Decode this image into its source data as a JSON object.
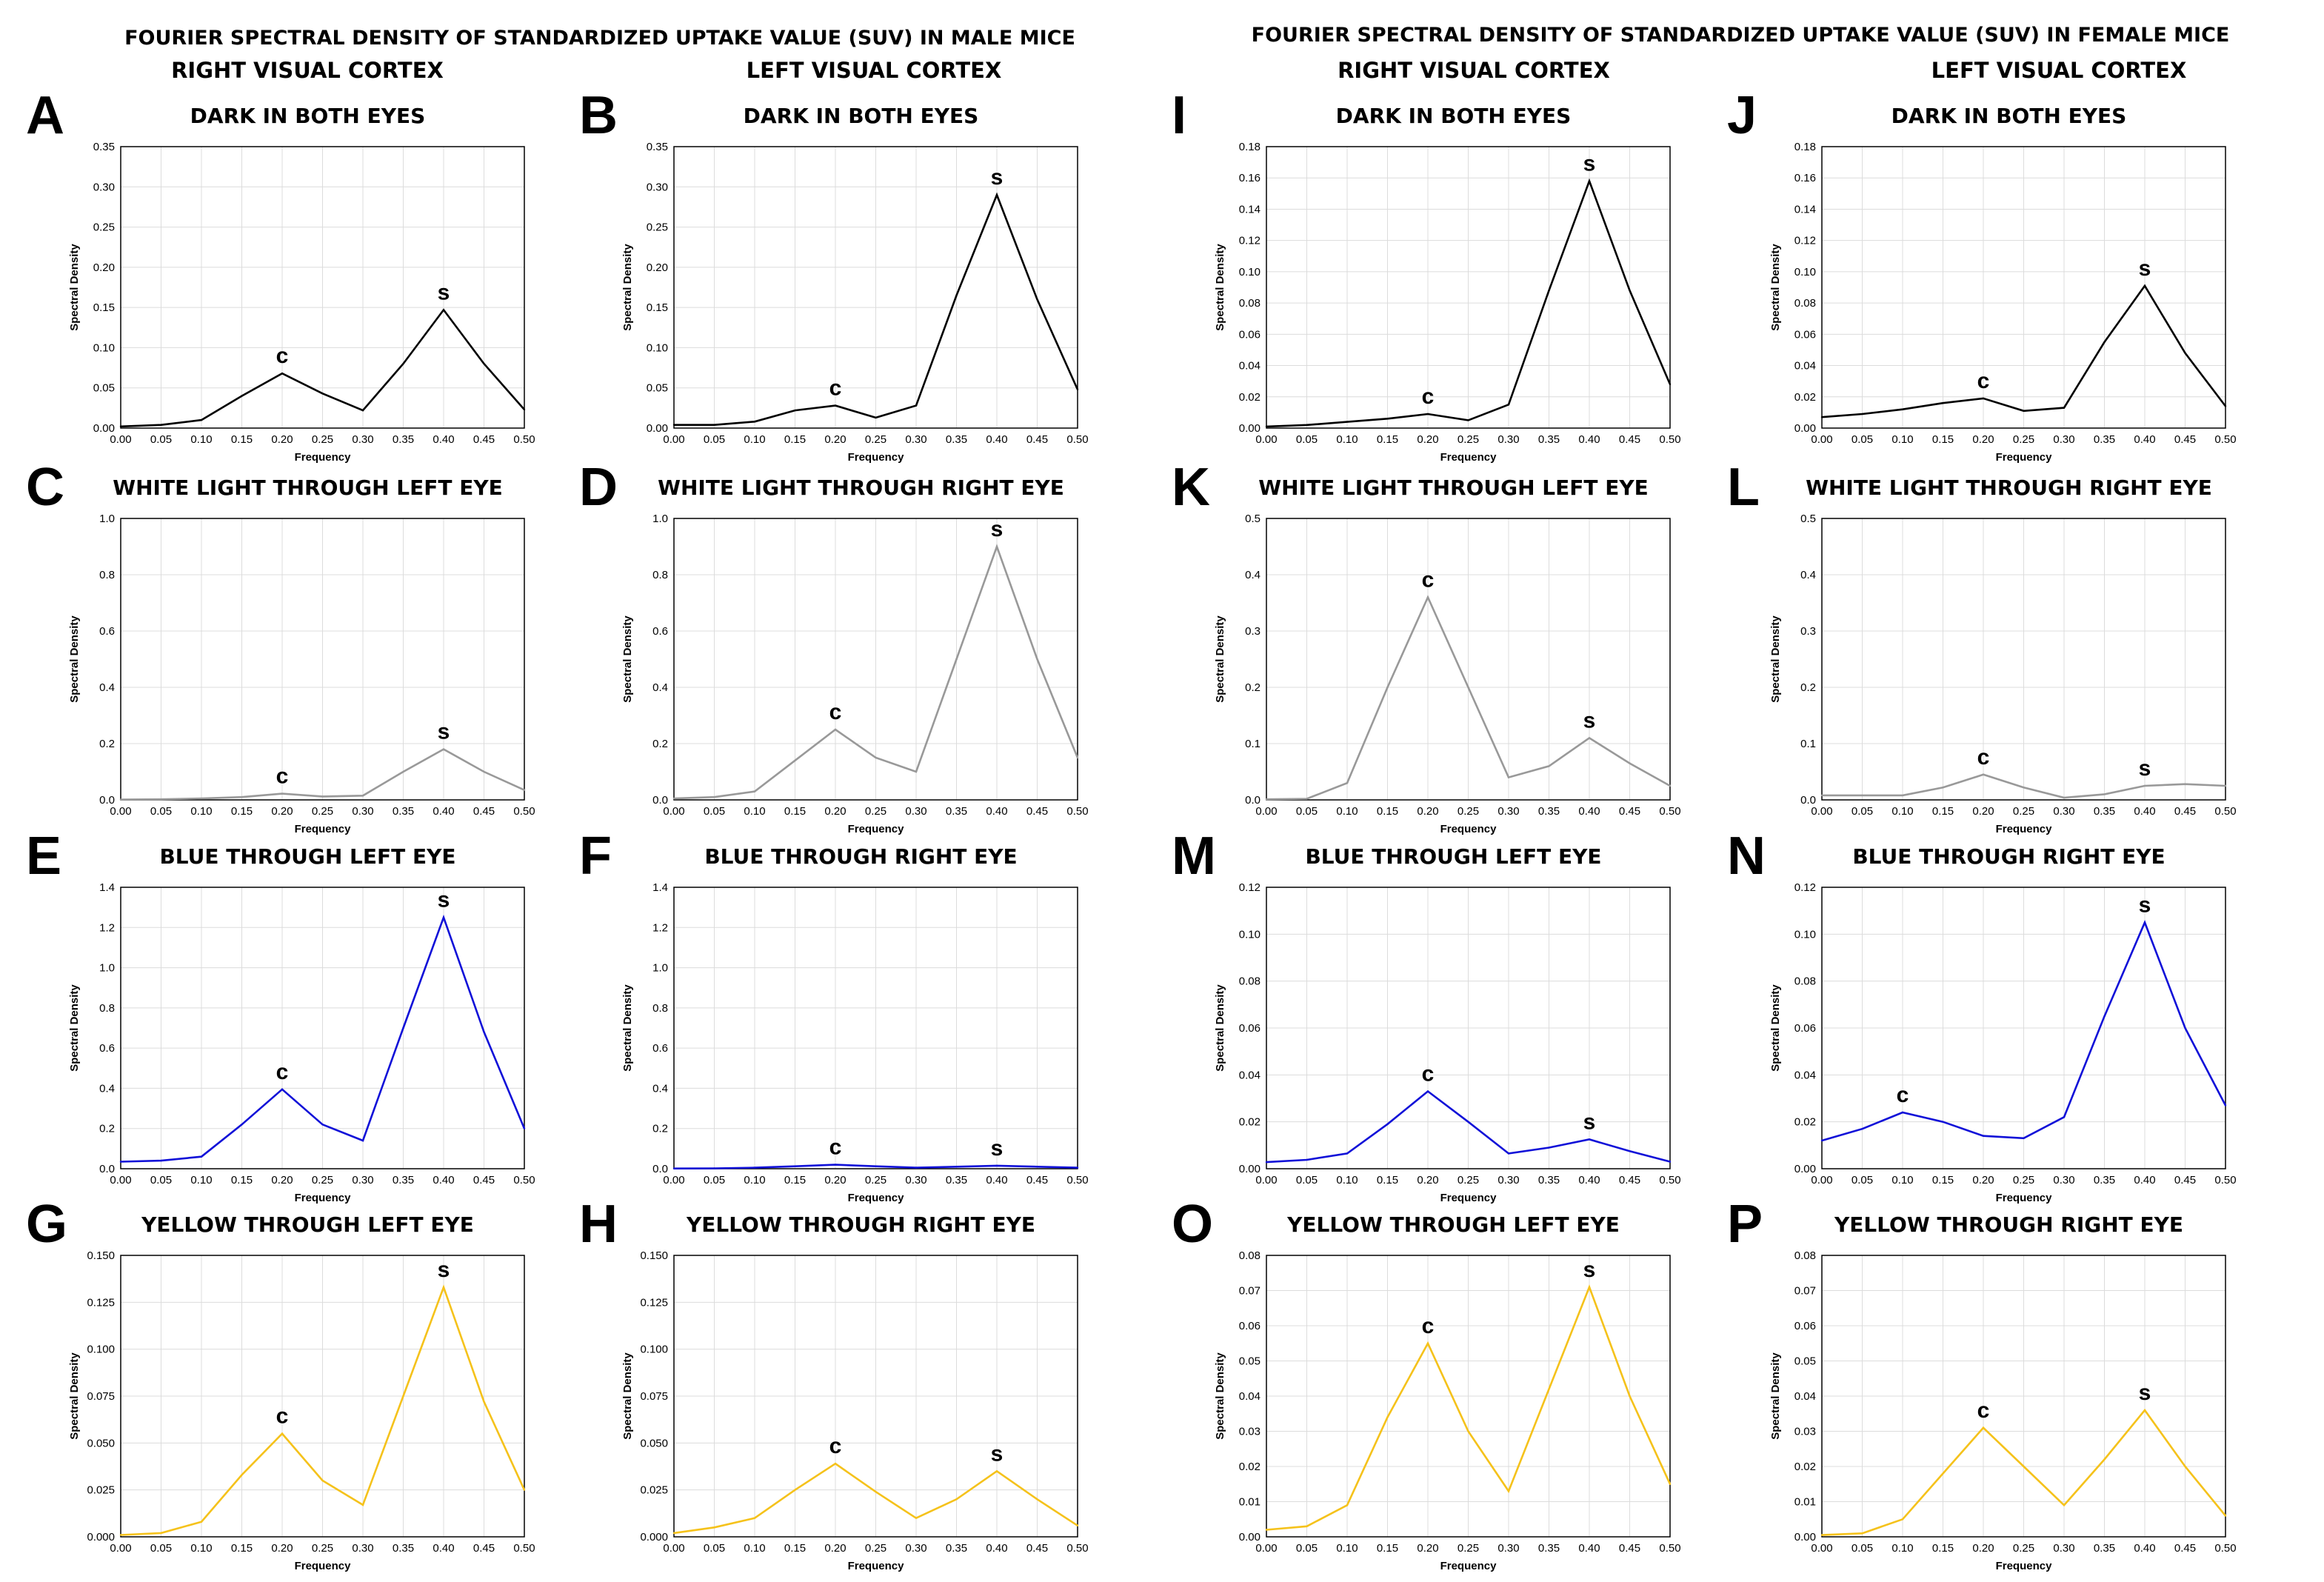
{
  "headers": {
    "male_title": "FOURIER SPECTRAL DENSITY OF STANDARDIZED UPTAKE VALUE (SUV) IN MALE MICE",
    "female_title": "FOURIER SPECTRAL DENSITY OF STANDARDIZED UPTAKE VALUE (SUV) IN FEMALE MICE",
    "right_cortex": "RIGHT VISUAL CORTEX",
    "left_cortex": "LEFT VISUAL CORTEX"
  },
  "colors": {
    "black": "#000000",
    "gray": "#999999",
    "blue": "#1010d8",
    "yellow": "#f5c21b"
  },
  "chart_data": [
    {
      "label": "A",
      "title": "DARK IN BOTH EYES",
      "type": "line",
      "color": "black",
      "xlabel": "Frequency",
      "ylabel": "Spectral Density",
      "x": [
        0,
        0.05,
        0.1,
        0.15,
        0.2,
        0.25,
        0.3,
        0.35,
        0.4,
        0.45,
        0.5
      ],
      "y": [
        0.002,
        0.004,
        0.01,
        0.04,
        0.068,
        0.043,
        0.022,
        0.08,
        0.147,
        0.08,
        0.023
      ],
      "ylim": [
        0,
        0.35
      ],
      "yticks": [
        "0.00",
        "0.05",
        "0.10",
        "0.15",
        "0.20",
        "0.25",
        "0.30",
        "0.35"
      ],
      "peaks": [
        {
          "t": "c",
          "x": 0.2,
          "y": 0.068
        },
        {
          "t": "s",
          "x": 0.4,
          "y": 0.147
        }
      ]
    },
    {
      "label": "B",
      "title": "DARK IN BOTH EYES",
      "type": "line",
      "color": "black",
      "xlabel": "Frequency",
      "ylabel": "Spectral Density",
      "x": [
        0,
        0.05,
        0.1,
        0.15,
        0.2,
        0.25,
        0.3,
        0.35,
        0.4,
        0.45,
        0.5
      ],
      "y": [
        0.004,
        0.004,
        0.008,
        0.022,
        0.028,
        0.013,
        0.028,
        0.165,
        0.29,
        0.16,
        0.048
      ],
      "ylim": [
        0,
        0.35
      ],
      "yticks": [
        "0.00",
        "0.05",
        "0.10",
        "0.15",
        "0.20",
        "0.25",
        "0.30",
        "0.35"
      ],
      "peaks": [
        {
          "t": "c",
          "x": 0.2,
          "y": 0.028
        },
        {
          "t": "s",
          "x": 0.4,
          "y": 0.29
        }
      ]
    },
    {
      "label": "I",
      "title": "DARK IN BOTH EYES",
      "type": "line",
      "color": "black",
      "xlabel": "Frequency",
      "ylabel": "Spectral Density",
      "x": [
        0,
        0.05,
        0.1,
        0.15,
        0.2,
        0.25,
        0.3,
        0.35,
        0.4,
        0.45,
        0.5
      ],
      "y": [
        0.001,
        0.002,
        0.004,
        0.006,
        0.009,
        0.005,
        0.015,
        0.088,
        0.158,
        0.088,
        0.028
      ],
      "ylim": [
        0,
        0.18
      ],
      "yticks": [
        "0.00",
        "0.02",
        "0.04",
        "0.06",
        "0.08",
        "0.10",
        "0.12",
        "0.14",
        "0.16",
        "0.18"
      ],
      "peaks": [
        {
          "t": "c",
          "x": 0.2,
          "y": 0.009
        },
        {
          "t": "s",
          "x": 0.4,
          "y": 0.158
        }
      ]
    },
    {
      "label": "J",
      "title": "DARK IN BOTH EYES",
      "type": "line",
      "color": "black",
      "xlabel": "Frequency",
      "ylabel": "Spectral Density",
      "x": [
        0,
        0.05,
        0.1,
        0.15,
        0.2,
        0.25,
        0.3,
        0.35,
        0.4,
        0.45,
        0.5
      ],
      "y": [
        0.007,
        0.009,
        0.012,
        0.016,
        0.019,
        0.011,
        0.013,
        0.055,
        0.091,
        0.048,
        0.014
      ],
      "ylim": [
        0,
        0.18
      ],
      "yticks": [
        "0.00",
        "0.02",
        "0.04",
        "0.06",
        "0.08",
        "0.10",
        "0.12",
        "0.14",
        "0.16",
        "0.18"
      ],
      "peaks": [
        {
          "t": "c",
          "x": 0.2,
          "y": 0.019
        },
        {
          "t": "s",
          "x": 0.4,
          "y": 0.091
        }
      ]
    },
    {
      "label": "C",
      "title": "WHITE LIGHT THROUGH LEFT EYE",
      "type": "line",
      "color": "gray",
      "xlabel": "Frequency",
      "ylabel": "Spectral Density",
      "x": [
        0,
        0.05,
        0.1,
        0.15,
        0.2,
        0.25,
        0.3,
        0.35,
        0.4,
        0.45,
        0.5
      ],
      "y": [
        0.001,
        0.002,
        0.005,
        0.01,
        0.022,
        0.012,
        0.015,
        0.1,
        0.18,
        0.1,
        0.035
      ],
      "ylim": [
        0,
        1.0
      ],
      "yticks": [
        "0.0",
        "0.2",
        "0.4",
        "0.6",
        "0.8",
        "1.0"
      ],
      "peaks": [
        {
          "t": "c",
          "x": 0.2,
          "y": 0.022
        },
        {
          "t": "s",
          "x": 0.4,
          "y": 0.18
        }
      ]
    },
    {
      "label": "D",
      "title": "WHITE LIGHT THROUGH RIGHT EYE",
      "type": "line",
      "color": "gray",
      "xlabel": "Frequency",
      "ylabel": "Spectral Density",
      "x": [
        0,
        0.05,
        0.1,
        0.15,
        0.2,
        0.25,
        0.3,
        0.35,
        0.4,
        0.45,
        0.5
      ],
      "y": [
        0.005,
        0.01,
        0.03,
        0.14,
        0.25,
        0.15,
        0.1,
        0.5,
        0.9,
        0.5,
        0.15
      ],
      "ylim": [
        0,
        1.0
      ],
      "yticks": [
        "0.0",
        "0.2",
        "0.4",
        "0.6",
        "0.8",
        "1.0"
      ],
      "peaks": [
        {
          "t": "c",
          "x": 0.2,
          "y": 0.25
        },
        {
          "t": "s",
          "x": 0.4,
          "y": 0.9
        }
      ]
    },
    {
      "label": "K",
      "title": "WHITE LIGHT THROUGH LEFT EYE",
      "type": "line",
      "color": "gray",
      "xlabel": "Frequency",
      "ylabel": "Spectral Density",
      "x": [
        0,
        0.05,
        0.1,
        0.15,
        0.2,
        0.25,
        0.3,
        0.35,
        0.4,
        0.45,
        0.5
      ],
      "y": [
        0.001,
        0.002,
        0.03,
        0.2,
        0.36,
        0.2,
        0.04,
        0.06,
        0.11,
        0.065,
        0.025
      ],
      "ylim": [
        0,
        0.5
      ],
      "yticks": [
        "0.0",
        "0.1",
        "0.2",
        "0.3",
        "0.4",
        "0.5"
      ],
      "peaks": [
        {
          "t": "c",
          "x": 0.2,
          "y": 0.36
        },
        {
          "t": "s",
          "x": 0.4,
          "y": 0.11
        }
      ]
    },
    {
      "label": "L",
      "title": "WHITE LIGHT THROUGH RIGHT EYE",
      "type": "line",
      "color": "gray",
      "xlabel": "Frequency",
      "ylabel": "Spectral Density",
      "x": [
        0,
        0.05,
        0.1,
        0.15,
        0.2,
        0.25,
        0.3,
        0.35,
        0.4,
        0.45,
        0.5
      ],
      "y": [
        0.008,
        0.008,
        0.008,
        0.022,
        0.045,
        0.022,
        0.004,
        0.01,
        0.025,
        0.028,
        0.025
      ],
      "ylim": [
        0,
        0.5
      ],
      "yticks": [
        "0.0",
        "0.1",
        "0.2",
        "0.3",
        "0.4",
        "0.5"
      ],
      "peaks": [
        {
          "t": "c",
          "x": 0.2,
          "y": 0.045
        },
        {
          "t": "s",
          "x": 0.4,
          "y": 0.025
        }
      ]
    },
    {
      "label": "E",
      "title": "BLUE THROUGH LEFT EYE",
      "type": "line",
      "color": "blue",
      "xlabel": "Frequency",
      "ylabel": "Spectral Density",
      "x": [
        0,
        0.05,
        0.1,
        0.15,
        0.2,
        0.25,
        0.3,
        0.35,
        0.4,
        0.45,
        0.5
      ],
      "y": [
        0.035,
        0.04,
        0.06,
        0.22,
        0.395,
        0.22,
        0.14,
        0.7,
        1.25,
        0.68,
        0.2
      ],
      "ylim": [
        0,
        1.4
      ],
      "yticks": [
        "0.0",
        "0.2",
        "0.4",
        "0.6",
        "0.8",
        "1.0",
        "1.2",
        "1.4"
      ],
      "peaks": [
        {
          "t": "c",
          "x": 0.2,
          "y": 0.395
        },
        {
          "t": "s",
          "x": 0.4,
          "y": 1.25
        }
      ]
    },
    {
      "label": "F",
      "title": "BLUE THROUGH RIGHT EYE",
      "type": "line",
      "color": "blue",
      "xlabel": "Frequency",
      "ylabel": "Spectral Density",
      "x": [
        0,
        0.05,
        0.1,
        0.15,
        0.2,
        0.25,
        0.3,
        0.35,
        0.4,
        0.45,
        0.5
      ],
      "y": [
        0.001,
        0.002,
        0.005,
        0.012,
        0.02,
        0.012,
        0.005,
        0.01,
        0.015,
        0.01,
        0.005
      ],
      "ylim": [
        0,
        1.4
      ],
      "yticks": [
        "0.0",
        "0.2",
        "0.4",
        "0.6",
        "0.8",
        "1.0",
        "1.2",
        "1.4"
      ],
      "peaks": [
        {
          "t": "c",
          "x": 0.2,
          "y": 0.02
        },
        {
          "t": "s",
          "x": 0.4,
          "y": 0.015
        }
      ]
    },
    {
      "label": "M",
      "title": "BLUE THROUGH LEFT EYE",
      "type": "line",
      "color": "blue",
      "xlabel": "Frequency",
      "ylabel": "Spectral Density",
      "x": [
        0,
        0.05,
        0.1,
        0.15,
        0.2,
        0.25,
        0.3,
        0.35,
        0.4,
        0.45,
        0.5
      ],
      "y": [
        0.0028,
        0.0038,
        0.0065,
        0.019,
        0.033,
        0.02,
        0.0065,
        0.009,
        0.0125,
        0.0075,
        0.003
      ],
      "ylim": [
        0,
        0.12
      ],
      "yticks": [
        "0.00",
        "0.02",
        "0.04",
        "0.06",
        "0.08",
        "0.10",
        "0.12"
      ],
      "peaks": [
        {
          "t": "c",
          "x": 0.2,
          "y": 0.033
        },
        {
          "t": "s",
          "x": 0.4,
          "y": 0.0125
        }
      ]
    },
    {
      "label": "N",
      "title": "BLUE THROUGH RIGHT EYE",
      "type": "line",
      "color": "blue",
      "xlabel": "Frequency",
      "ylabel": "Spectral Density",
      "x": [
        0,
        0.05,
        0.1,
        0.15,
        0.2,
        0.25,
        0.3,
        0.35,
        0.4,
        0.45,
        0.5
      ],
      "y": [
        0.012,
        0.017,
        0.024,
        0.02,
        0.014,
        0.013,
        0.022,
        0.065,
        0.105,
        0.06,
        0.027
      ],
      "ylim": [
        0,
        0.12
      ],
      "yticks": [
        "0.00",
        "0.02",
        "0.04",
        "0.06",
        "0.08",
        "0.10",
        "0.12"
      ],
      "peaks": [
        {
          "t": "c",
          "x": 0.1,
          "y": 0.024
        },
        {
          "t": "s",
          "x": 0.4,
          "y": 0.105
        }
      ]
    },
    {
      "label": "G",
      "title": "YELLOW THROUGH LEFT EYE",
      "type": "line",
      "color": "yellow",
      "xlabel": "Frequency",
      "ylabel": "Spectral Density",
      "x": [
        0,
        0.05,
        0.1,
        0.15,
        0.2,
        0.25,
        0.3,
        0.35,
        0.4,
        0.45,
        0.5
      ],
      "y": [
        0.001,
        0.002,
        0.008,
        0.033,
        0.055,
        0.03,
        0.017,
        0.075,
        0.133,
        0.072,
        0.025
      ],
      "ylim": [
        0,
        0.15
      ],
      "yticks": [
        "0.000",
        "0.025",
        "0.050",
        "0.075",
        "0.100",
        "0.125",
        "0.150"
      ],
      "peaks": [
        {
          "t": "c",
          "x": 0.2,
          "y": 0.055
        },
        {
          "t": "s",
          "x": 0.4,
          "y": 0.133
        }
      ]
    },
    {
      "label": "H",
      "title": "YELLOW THROUGH RIGHT EYE",
      "type": "line",
      "color": "yellow",
      "xlabel": "Frequency",
      "ylabel": "Spectral Density",
      "x": [
        0,
        0.05,
        0.1,
        0.15,
        0.2,
        0.25,
        0.3,
        0.35,
        0.4,
        0.45,
        0.5
      ],
      "y": [
        0.002,
        0.005,
        0.01,
        0.025,
        0.039,
        0.024,
        0.01,
        0.02,
        0.035,
        0.02,
        0.006
      ],
      "ylim": [
        0,
        0.15
      ],
      "yticks": [
        "0.000",
        "0.025",
        "0.050",
        "0.075",
        "0.100",
        "0.125",
        "0.150"
      ],
      "peaks": [
        {
          "t": "c",
          "x": 0.2,
          "y": 0.039
        },
        {
          "t": "s",
          "x": 0.4,
          "y": 0.035
        }
      ]
    },
    {
      "label": "O",
      "title": "YELLOW THROUGH LEFT  EYE",
      "type": "line",
      "color": "yellow",
      "xlabel": "Frequency",
      "ylabel": "Spectral Density",
      "x": [
        0,
        0.05,
        0.1,
        0.15,
        0.2,
        0.25,
        0.3,
        0.35,
        0.4,
        0.45,
        0.5
      ],
      "y": [
        0.002,
        0.003,
        0.009,
        0.034,
        0.055,
        0.03,
        0.013,
        0.042,
        0.071,
        0.04,
        0.015
      ],
      "ylim": [
        0,
        0.08
      ],
      "yticks": [
        "0.00",
        "0.01",
        "0.02",
        "0.03",
        "0.04",
        "0.05",
        "0.06",
        "0.07",
        "0.08"
      ],
      "peaks": [
        {
          "t": "c",
          "x": 0.2,
          "y": 0.055
        },
        {
          "t": "s",
          "x": 0.4,
          "y": 0.071
        }
      ]
    },
    {
      "label": "P",
      "title": "YELLOW THROUGH RIGHT EYE",
      "type": "line",
      "color": "yellow",
      "xlabel": "Frequency",
      "ylabel": "Spectral Density",
      "x": [
        0,
        0.05,
        0.1,
        0.15,
        0.2,
        0.25,
        0.3,
        0.35,
        0.4,
        0.45,
        0.5
      ],
      "y": [
        0.0005,
        0.001,
        0.005,
        0.018,
        0.031,
        0.02,
        0.009,
        0.022,
        0.036,
        0.02,
        0.006
      ],
      "ylim": [
        0,
        0.08
      ],
      "yticks": [
        "0.00",
        "0.01",
        "0.02",
        "0.03",
        "0.04",
        "0.05",
        "0.06",
        "0.07",
        "0.08"
      ],
      "peaks": [
        {
          "t": "c",
          "x": 0.2,
          "y": 0.031
        },
        {
          "t": "s",
          "x": 0.4,
          "y": 0.036
        }
      ]
    }
  ],
  "xticks": [
    "0.00",
    "0.05",
    "0.10",
    "0.15",
    "0.20",
    "0.25",
    "0.30",
    "0.35",
    "0.40",
    "0.45",
    "0.50"
  ]
}
